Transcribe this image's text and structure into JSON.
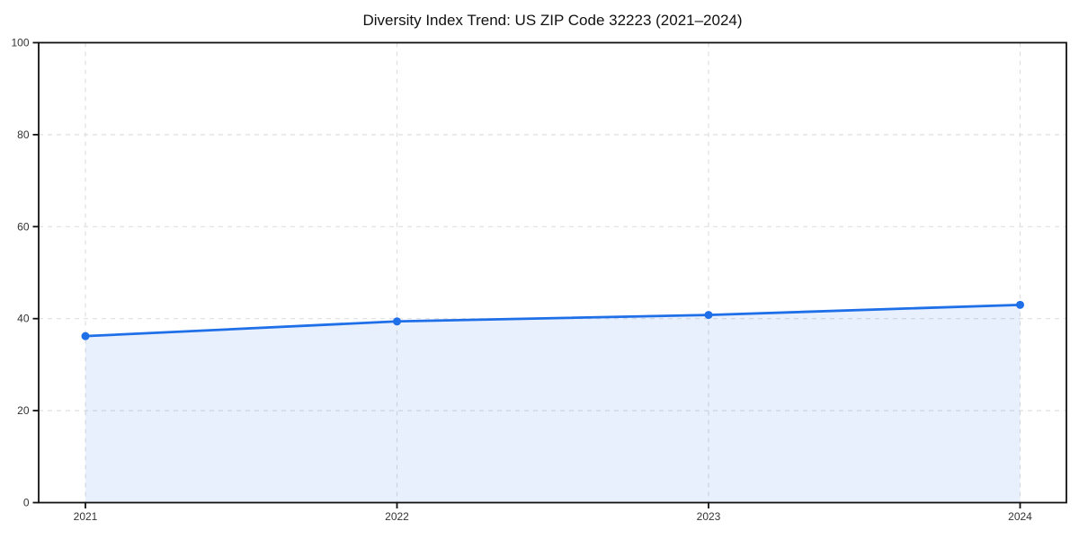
{
  "chart_data": {
    "type": "line",
    "title": "Diversity Index Trend: US ZIP Code 32223 (2021–2024)",
    "x": [
      "2021",
      "2022",
      "2023",
      "2024"
    ],
    "series": [
      {
        "name": "Diversity Index",
        "values": [
          36.2,
          39.4,
          40.8,
          43.0
        ]
      }
    ],
    "area_fill": true,
    "markers": "circle",
    "xlabel": "",
    "ylabel": "",
    "ylim": [
      0,
      100
    ],
    "yticks": [
      0,
      20,
      40,
      60,
      80,
      100
    ],
    "grid": {
      "style": "dashed",
      "axes": "both"
    },
    "legend_position": "none",
    "colors": {
      "line": "#1f6fe8",
      "marker": "#1f6fe8",
      "area": "#1f6fe8",
      "area_opacity": 0.1,
      "grid": "#dfdfdf",
      "spine": "#111111",
      "tick_label": "#333333",
      "title": "#111111",
      "background": "#ffffff"
    }
  }
}
